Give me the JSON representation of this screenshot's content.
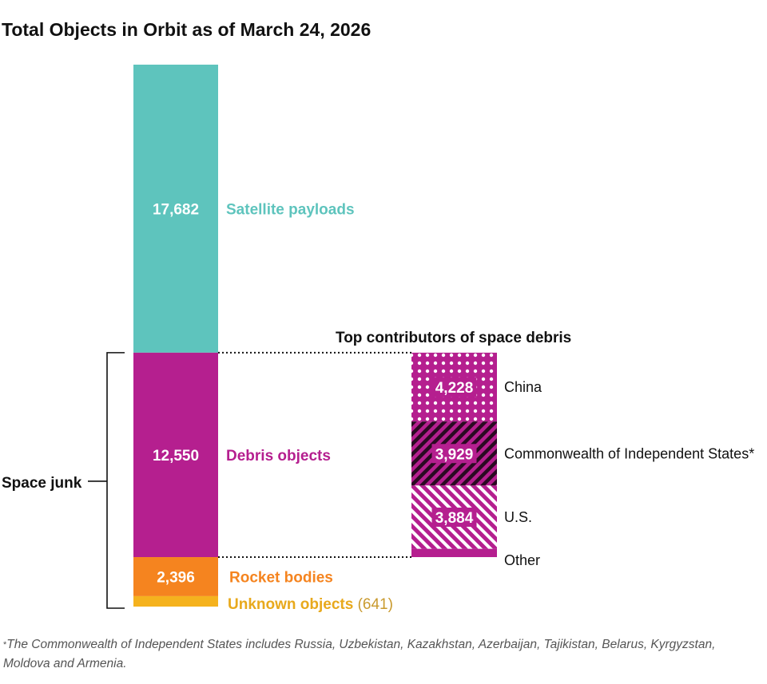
{
  "colors": {
    "satellite": "#5ec4bd",
    "debris": "#b51f8f",
    "rocket": "#f5841f",
    "unknown": "#f5b21e",
    "unknown_label": "#e8a91c",
    "unknown_value": "#c99a2e",
    "debris_dark": "#7d1466"
  },
  "chart_data": {
    "type": "bar",
    "title": "Total Objects in Orbit as of March 24, 2026",
    "stacked_bar": [
      {
        "label": "Satellite payloads",
        "value": 17682,
        "value_label": "17,682",
        "color_key": "satellite"
      },
      {
        "label": "Debris objects",
        "value": 12550,
        "value_label": "12,550",
        "color_key": "debris"
      },
      {
        "label": "Rocket bodies",
        "value": 2396,
        "value_label": "2,396",
        "color_key": "rocket"
      },
      {
        "label": "Unknown objects",
        "value": 641,
        "value_label": "(641)",
        "color_key": "unknown"
      }
    ],
    "bracket_label": "Space junk",
    "breakdown": {
      "title": "Top contributors of space debris",
      "segments": [
        {
          "label": "China",
          "value": 4228,
          "value_label": "4,228",
          "pattern": "dots"
        },
        {
          "label": "Commonwealth of Independent States*",
          "value": 3929,
          "value_label": "3,929",
          "pattern": "stripes-dark"
        },
        {
          "label": "U.S.",
          "value": 3884,
          "value_label": "3,884",
          "pattern": "stripes-light"
        },
        {
          "label": "Other",
          "value": 509,
          "value_label": "",
          "pattern": "solid"
        }
      ]
    }
  },
  "footnote": {
    "marker": "*",
    "text": "The Commonwealth of Independent States includes Russia, Uzbekistan, Kazakhstan, Azerbaijan, Tajikistan, Belarus, Kyrgyzstan, Moldova and Armenia."
  }
}
